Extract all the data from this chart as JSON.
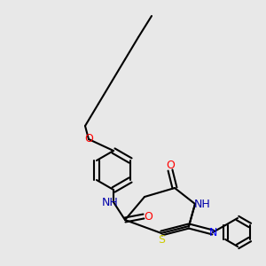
{
  "bg_color": "#e8e8e8",
  "bond_color": "#000000",
  "bond_width": 1.5,
  "font_size": 9,
  "atoms": {
    "S": {
      "color": "#cccc00",
      "size": 9
    },
    "O": {
      "color": "#ff0000",
      "size": 9
    },
    "N": {
      "color": "#0000ff",
      "size": 9
    },
    "NH": {
      "color": "#0000aa",
      "size": 9
    },
    "C": {
      "color": "#000000",
      "size": 9
    }
  }
}
